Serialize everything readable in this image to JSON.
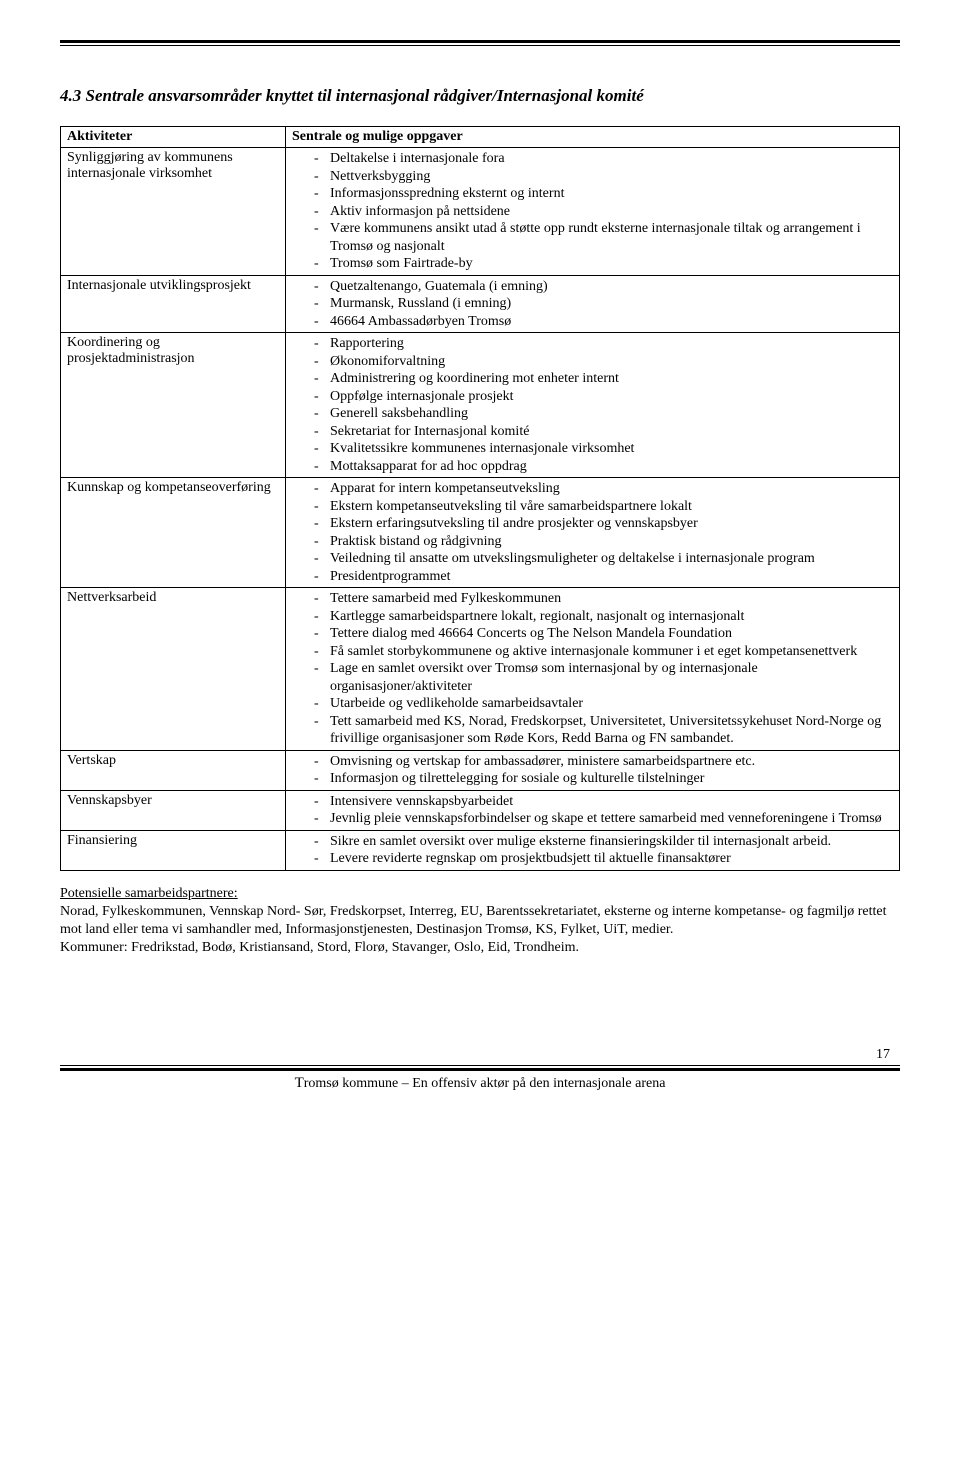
{
  "section_title": "4.3 Sentrale ansvarsområder knyttet til internasjonal rådgiver/Internasjonal komité",
  "table": {
    "header_left": "Aktiviteter",
    "header_right": "Sentrale og mulige oppgaver",
    "rows": [
      {
        "activity": "Synliggjøring av kommunens internasjonale virksomhet",
        "items": [
          "Deltakelse i internasjonale fora",
          "Nettverksbygging",
          "Informasjonsspredning eksternt og internt",
          "Aktiv informasjon på nettsidene",
          "Være kommunens ansikt utad å støtte opp rundt eksterne internasjonale tiltak og arrangement i Tromsø og nasjonalt",
          "Tromsø som Fairtrade-by"
        ]
      },
      {
        "activity": "Internasjonale utviklingsprosjekt",
        "items": [
          "Quetzaltenango, Guatemala (i emning)",
          "Murmansk, Russland (i emning)",
          "46664 Ambassadørbyen Tromsø"
        ]
      },
      {
        "activity": "Koordinering og prosjektadministrasjon",
        "items": [
          "Rapportering",
          "Økonomiforvaltning",
          "Administrering og koordinering mot enheter internt",
          "Oppfølge internasjonale prosjekt",
          "Generell saksbehandling",
          "Sekretariat for Internasjonal komité",
          "Kvalitetssikre kommunenes internasjonale virksomhet",
          "Mottaksapparat for ad hoc oppdrag"
        ]
      },
      {
        "activity": "Kunnskap og kompetanseoverføring",
        "items": [
          "Apparat for intern kompetanseutveksling",
          "Ekstern kompetanseutveksling til våre samarbeidspartnere lokalt",
          "Ekstern erfaringsutveksling til andre prosjekter og vennskapsbyer",
          "Praktisk bistand og rådgivning",
          "Veiledning til ansatte om utvekslingsmuligheter og deltakelse i internasjonale program",
          "Presidentprogrammet"
        ]
      },
      {
        "activity": "Nettverksarbeid",
        "items": [
          "Tettere samarbeid med Fylkeskommunen",
          "Kartlegge samarbeidspartnere lokalt, regionalt, nasjonalt og internasjonalt",
          "Tettere dialog med 46664 Concerts og The Nelson Mandela Foundation",
          "Få samlet storbykommunene og aktive internasjonale kommuner i et eget kompetansenettverk",
          "Lage en samlet oversikt over Tromsø som internasjonal by og internasjonale organisasjoner/aktiviteter",
          "Utarbeide og vedlikeholde samarbeidsavtaler",
          "Tett samarbeid med KS, Norad, Fredskorpset, Universitetet, Universitetssykehuset Nord-Norge og frivillige organisasjoner som Røde Kors, Redd Barna og FN sambandet."
        ]
      },
      {
        "activity": "Vertskap",
        "items": [
          "Omvisning og vertskap for ambassadører, ministere samarbeidspartnere etc.",
          "Informasjon og tilrettelegging for sosiale og kulturelle tilstelninger"
        ]
      },
      {
        "activity": "Vennskapsbyer",
        "items": [
          "Intensivere vennskapsbyarbeidet",
          "Jevnlig pleie vennskapsforbindelser og skape et tettere samarbeid med venneforeningene i Tromsø"
        ]
      },
      {
        "activity": "Finansiering",
        "items": [
          "Sikre en samlet oversikt over mulige eksterne finansieringskilder til internasjonalt arbeid.",
          "Levere reviderte regnskap om prosjektbudsjett til aktuelle finansaktører"
        ]
      }
    ]
  },
  "partners": {
    "heading": "Potensielle samarbeidspartnere:",
    "body1": "Norad, Fylkeskommunen, Vennskap Nord- Sør, Fredskorpset, Interreg, EU, Barentssekretariatet, eksterne og interne kompetanse- og fagmiljø rettet mot land eller tema vi samhandler med, Informasjonstjenesten, Destinasjon Tromsø, KS, Fylket, UiT, medier.",
    "body2": "Kommuner: Fredrikstad, Bodø, Kristiansand, Stord, Florø, Stavanger, Oslo, Eid, Trondheim."
  },
  "footer": {
    "page_number": "17",
    "text_prefix": "T",
    "text_rest": "romsø kommune – En offensiv aktør på den internasjonale arena"
  }
}
